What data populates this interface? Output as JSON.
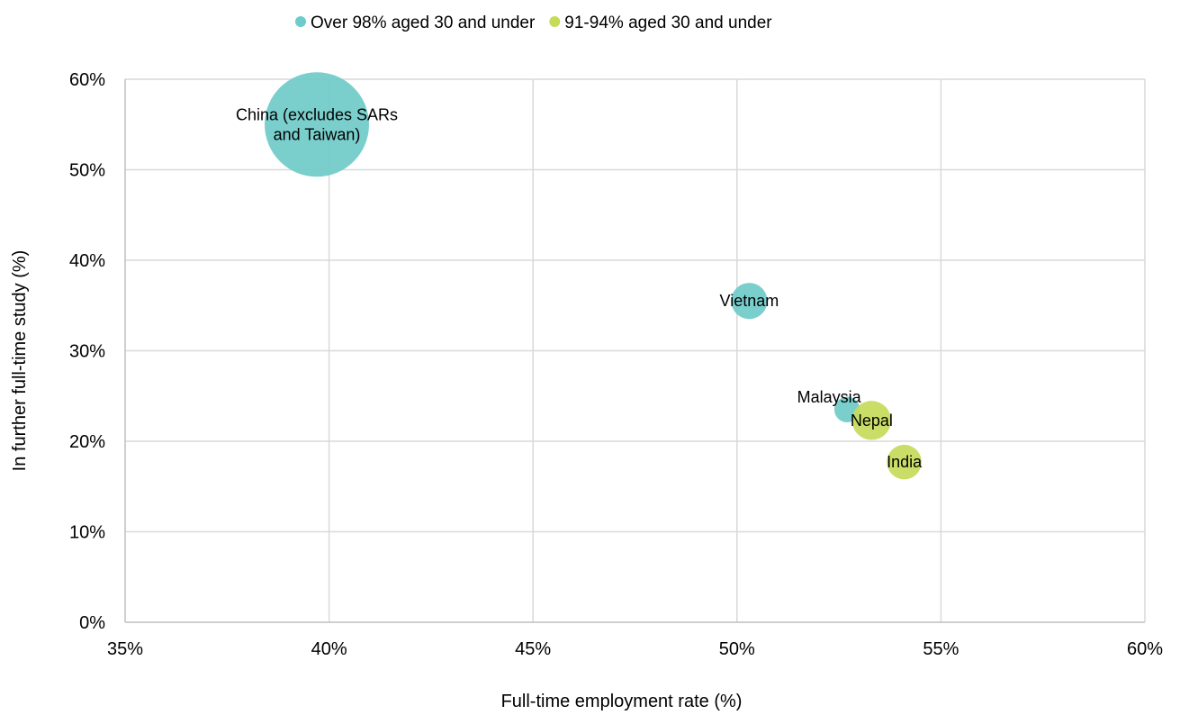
{
  "chart_data": {
    "type": "bubble",
    "xlabel": "Full-time employment rate (%)",
    "ylabel": "In further full-time study (%)",
    "xlim": [
      35,
      60
    ],
    "ylim": [
      0,
      60
    ],
    "x_ticks": [
      35,
      40,
      45,
      50,
      55,
      60
    ],
    "y_ticks": [
      0,
      10,
      20,
      30,
      40,
      50,
      60
    ],
    "x_tick_labels": [
      "35%",
      "40%",
      "45%",
      "50%",
      "55%",
      "60%"
    ],
    "y_tick_labels": [
      "0%",
      "10%",
      "20%",
      "30%",
      "40%",
      "50%",
      "60%"
    ],
    "grid": true,
    "legend_position": "top",
    "series": [
      {
        "name": "Over 98% aged 30 and under",
        "color": "#6fcbc9",
        "points": [
          {
            "label": [
              "China (excludes SARs",
              "and Taiwan)"
            ],
            "x": 39.7,
            "y": 55.0,
            "size": 100
          },
          {
            "label": [
              "Vietnam"
            ],
            "x": 50.3,
            "y": 35.5,
            "size": 12
          },
          {
            "label": [
              "Malaysia"
            ],
            "x": 52.7,
            "y": 23.5,
            "size": 6
          }
        ]
      },
      {
        "name": "91-94% aged 30 and under",
        "color": "#c5db5a",
        "points": [
          {
            "label": [
              "Nepal"
            ],
            "x": 53.3,
            "y": 22.3,
            "size": 14
          },
          {
            "label": [
              "India"
            ],
            "x": 54.1,
            "y": 17.7,
            "size": 11
          }
        ]
      }
    ]
  }
}
